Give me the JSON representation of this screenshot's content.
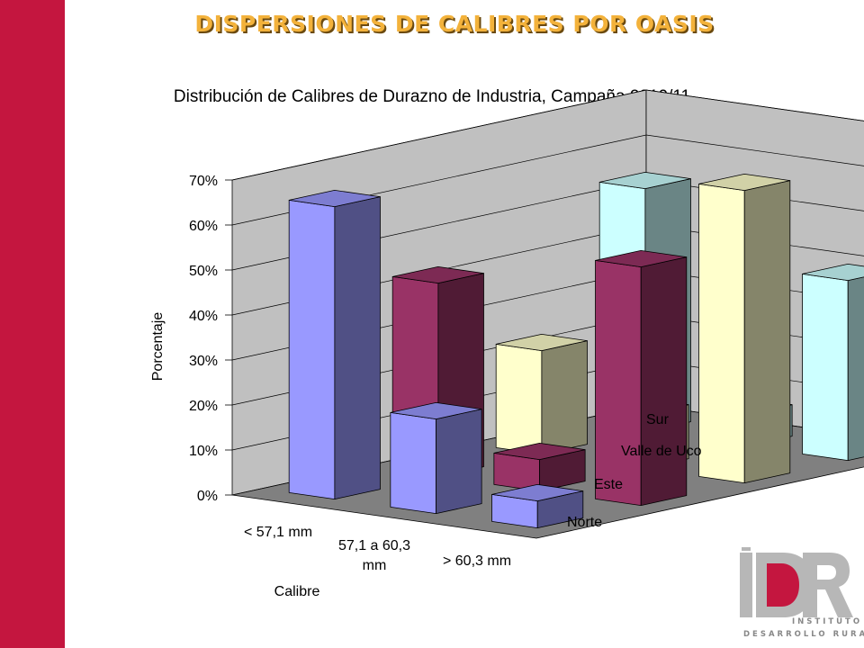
{
  "slide": {
    "title": "DISPERSIONES DE CALIBRES POR OASIS",
    "accent": "#c4163f",
    "title_color": "#f3b23b"
  },
  "logo": {
    "mark": "iDR",
    "line1": "INSTITUTO",
    "line2": "DESARROLLO RURAL"
  },
  "chart_data": {
    "type": "bar",
    "variant": "3d-clustered-depth",
    "title": "Distribución de Calibres de Durazno de Industria, Campaña 2010/11",
    "xlabel": "Calibre",
    "ylabel": "Porcentaje",
    "categories": [
      "<  57,1 mm",
      "57,1 a 60,3 mm",
      "> 60,3 mm"
    ],
    "ylim": [
      0,
      0.7
    ],
    "y_ticks": [
      "0%",
      "10%",
      "20%",
      "30%",
      "40%",
      "50%",
      "60%",
      "70%"
    ],
    "grid": true,
    "series": [
      {
        "name": "Norte",
        "color": "#9999ff",
        "values": [
          0.65,
          0.21,
          0.06
        ]
      },
      {
        "name": "Este",
        "color": "#993366",
        "values": [
          0.43,
          0.07,
          0.53
        ]
      },
      {
        "name": "Valle de Uco",
        "color": "#ffffcc",
        "values": [
          0.23,
          0.12,
          0.65
        ]
      },
      {
        "name": "Sur",
        "color": "#ccffff",
        "values": [
          0.54,
          0.07,
          0.4
        ]
      }
    ]
  }
}
